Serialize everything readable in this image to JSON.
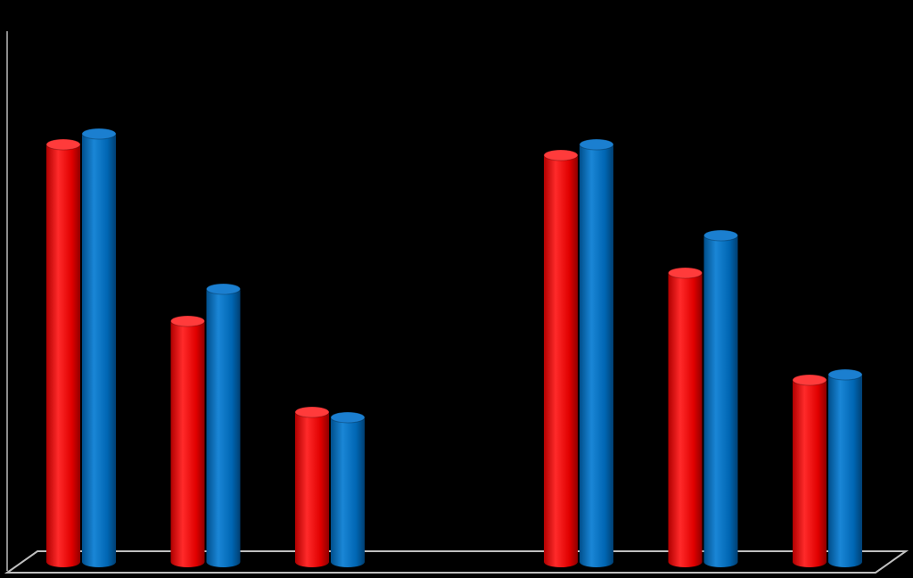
{
  "chart_data": {
    "type": "bar",
    "title": "",
    "xlabel": "",
    "ylabel": "",
    "categories": [
      "",
      "",
      "",
      "",
      "",
      "",
      ""
    ],
    "ylim": [
      0,
      100
    ],
    "grid": false,
    "legend": "none",
    "style": "3d-cylinder",
    "background": "#000000",
    "series": [
      {
        "color": "#ff0000",
        "values": [
          78,
          45,
          28,
          null,
          76,
          54,
          34
        ]
      },
      {
        "color": "#0070c0",
        "values": [
          80,
          51,
          27,
          null,
          78,
          61,
          35
        ]
      }
    ]
  }
}
